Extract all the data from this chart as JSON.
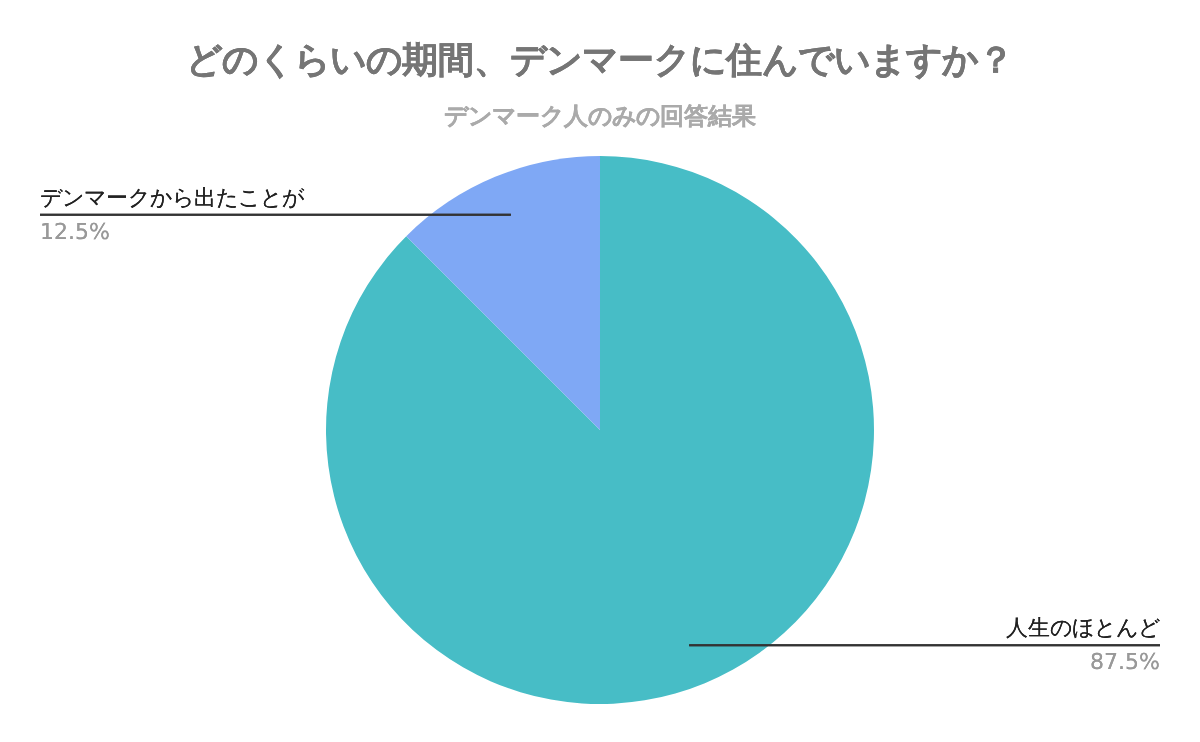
{
  "chart_data": {
    "type": "pie",
    "title": "どのくらいの期間、デンマークに住んでいますか？",
    "subtitle": "デンマーク人のみの回答結果",
    "categories": [
      "人生のほとんど",
      "デンマークから出たことが"
    ],
    "values": [
      87.5,
      12.5
    ],
    "value_labels": [
      "87.5%",
      "12.5%"
    ],
    "colors": [
      "#47bdc6",
      "#7fa8f5"
    ]
  }
}
